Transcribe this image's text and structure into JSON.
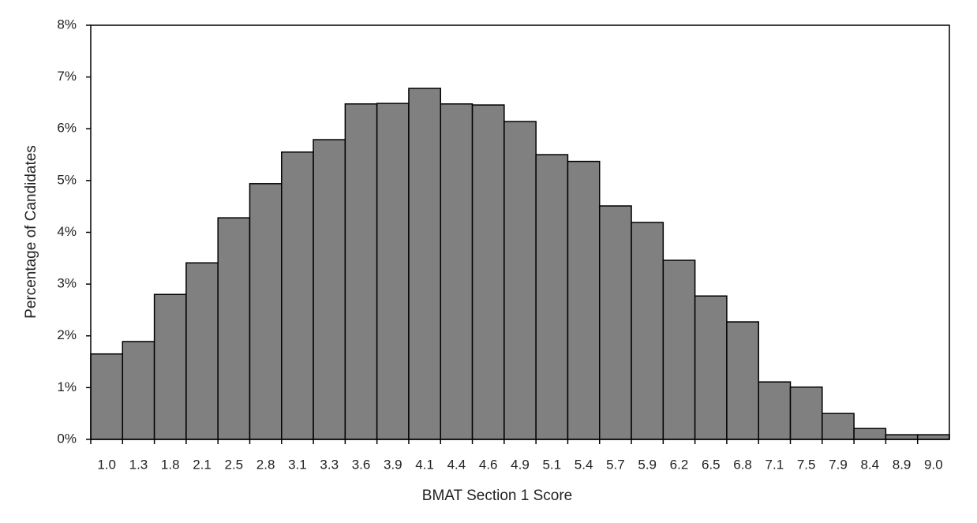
{
  "chart_data": {
    "type": "bar",
    "x_label": "BMAT Section 1 Score",
    "y_label": "Percentage of Candidates",
    "categories": [
      "1.0",
      "1.3",
      "1.8",
      "2.1",
      "2.5",
      "2.8",
      "3.1",
      "3.3",
      "3.6",
      "3.9",
      "4.1",
      "4.4",
      "4.6",
      "4.9",
      "5.1",
      "5.4",
      "5.7",
      "5.9",
      "6.2",
      "6.5",
      "6.8",
      "7.1",
      "7.5",
      "7.9",
      "8.4",
      "8.9",
      "9.0"
    ],
    "values": [
      1.65,
      1.89,
      2.8,
      3.41,
      4.28,
      4.94,
      5.55,
      5.79,
      6.48,
      6.49,
      6.78,
      6.48,
      6.46,
      6.14,
      5.5,
      5.37,
      4.51,
      4.19,
      3.46,
      2.77,
      2.27,
      1.11,
      1.01,
      0.5,
      0.21,
      0.09,
      0.09
    ],
    "color": "#808080",
    "ylim": [
      0,
      8
    ],
    "yticks": [
      {
        "value": 0,
        "label": "0%"
      },
      {
        "value": 1,
        "label": "1%"
      },
      {
        "value": 2,
        "label": "2%"
      },
      {
        "value": 3,
        "label": "3%"
      },
      {
        "value": 4,
        "label": "4%"
      },
      {
        "value": 5,
        "label": "5%"
      },
      {
        "value": 6,
        "label": "6%"
      },
      {
        "value": 7,
        "label": "7%"
      },
      {
        "value": 8,
        "label": "8%"
      }
    ],
    "grid": false
  }
}
